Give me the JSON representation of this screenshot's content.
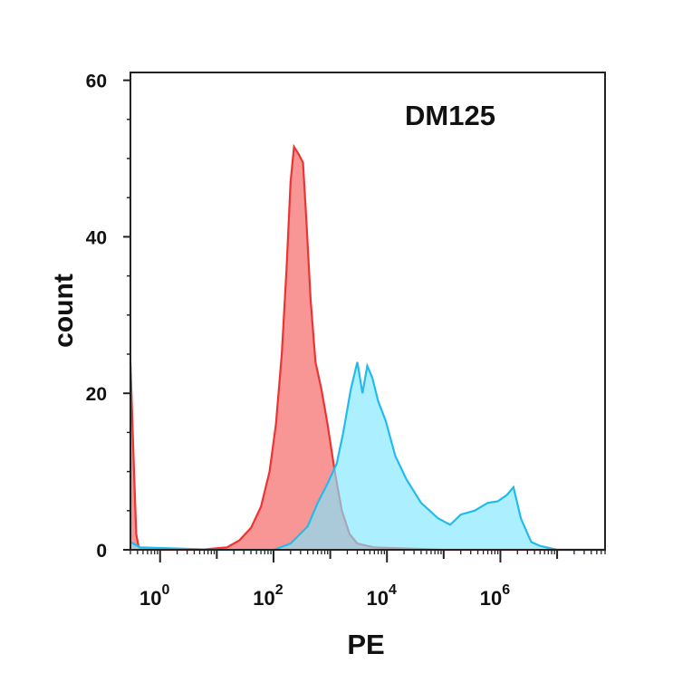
{
  "chart_data": {
    "type": "area",
    "title": "DM125",
    "xlabel": "PE",
    "ylabel": "count",
    "x_scale": "log",
    "xlim": [
      0.3,
      70000000
    ],
    "ylim": [
      0,
      61
    ],
    "y_ticks": [
      {
        "value": 0,
        "label": "0"
      },
      {
        "value": 20,
        "label": "20"
      },
      {
        "value": 40,
        "label": "40"
      },
      {
        "value": 60,
        "label": "60"
      }
    ],
    "x_ticks": [
      {
        "value": 1,
        "base": "10",
        "exp": "0"
      },
      {
        "value": 100,
        "base": "10",
        "exp": "2"
      },
      {
        "value": 10000,
        "base": "10",
        "exp": "4"
      },
      {
        "value": 1000000,
        "base": "10",
        "exp": "6"
      }
    ],
    "grid": false,
    "series": [
      {
        "fill": "#f78a8a",
        "stroke": "#ee3333",
        "points": [
          [
            0.3,
            24
          ],
          [
            0.34,
            12
          ],
          [
            0.38,
            2
          ],
          [
            0.42,
            0.3
          ],
          [
            1,
            0
          ],
          [
            5,
            0
          ],
          [
            15,
            0.3
          ],
          [
            25,
            1.2
          ],
          [
            40,
            2.8
          ],
          [
            60,
            5.5
          ],
          [
            85,
            10
          ],
          [
            110,
            16
          ],
          [
            140,
            25
          ],
          [
            170,
            36
          ],
          [
            200,
            47
          ],
          [
            230,
            51.5
          ],
          [
            280,
            50.5
          ],
          [
            330,
            49.5
          ],
          [
            380,
            42
          ],
          [
            450,
            32
          ],
          [
            550,
            24
          ],
          [
            700,
            20.5
          ],
          [
            900,
            16
          ],
          [
            1200,
            10
          ],
          [
            1600,
            5
          ],
          [
            2200,
            2
          ],
          [
            3000,
            0.8
          ],
          [
            6000,
            0.3
          ],
          [
            100000,
            0
          ],
          [
            70000000,
            0
          ]
        ]
      },
      {
        "fill": "#80e6ff",
        "stroke": "#22bbee",
        "points": [
          [
            0.3,
            1
          ],
          [
            0.45,
            0.3
          ],
          [
            10,
            0
          ],
          [
            100,
            0
          ],
          [
            200,
            0.8
          ],
          [
            400,
            3
          ],
          [
            600,
            6
          ],
          [
            900,
            8.5
          ],
          [
            1300,
            11
          ],
          [
            1700,
            15
          ],
          [
            2300,
            20.5
          ],
          [
            3000,
            24
          ],
          [
            3700,
            20
          ],
          [
            4500,
            23.5
          ],
          [
            5500,
            22
          ],
          [
            7000,
            19
          ],
          [
            9500,
            16.5
          ],
          [
            14000,
            12
          ],
          [
            22000,
            9
          ],
          [
            40000,
            6
          ],
          [
            80000,
            4
          ],
          [
            130000,
            3.2
          ],
          [
            200000,
            4.5
          ],
          [
            350000,
            5
          ],
          [
            600000,
            6
          ],
          [
            900000,
            6.2
          ],
          [
            1300000,
            7
          ],
          [
            1700000,
            8
          ],
          [
            2300000,
            4
          ],
          [
            3500000,
            1
          ],
          [
            5000000,
            0.5
          ],
          [
            10000000,
            0
          ],
          [
            70000000,
            0
          ]
        ]
      }
    ]
  }
}
